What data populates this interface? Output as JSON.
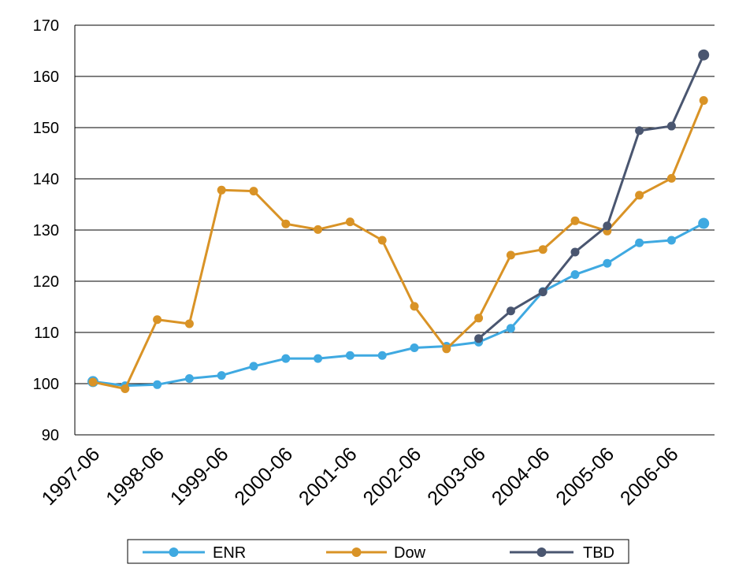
{
  "chart_data": {
    "type": "line",
    "title": "",
    "xlabel": "",
    "ylabel": "",
    "ylim": [
      90,
      170
    ],
    "y_ticks": [
      90,
      100,
      110,
      120,
      130,
      140,
      150,
      160,
      170
    ],
    "grid": true,
    "legend_position": "bottom",
    "x_tick_labels": [
      "1997-06",
      "1998-06",
      "1999-06",
      "2000-06",
      "2001-06",
      "2002-06",
      "2003-06",
      "2004-06",
      "2005-06",
      "2006-06"
    ],
    "x": [
      "1997-06",
      "1997-12",
      "1998-06",
      "1998-12",
      "1999-06",
      "1999-12",
      "2000-06",
      "2000-12",
      "2001-06",
      "2001-12",
      "2002-06",
      "2002-12",
      "2003-06",
      "2003-12",
      "2004-06",
      "2004-12",
      "2005-06",
      "2005-12",
      "2006-06",
      "2006-12"
    ],
    "series": [
      {
        "name": "ENR",
        "color": "#3fa9e1",
        "values": [
          100.4,
          99.6,
          99.8,
          101.0,
          101.6,
          103.4,
          104.9,
          104.9,
          105.5,
          105.5,
          107.0,
          107.3,
          108.1,
          110.8,
          118.0,
          121.3,
          123.5,
          127.5,
          128.0,
          131.3
        ]
      },
      {
        "name": "Dow",
        "color": "#d99326",
        "values": [
          100.3,
          99.0,
          112.5,
          111.7,
          137.8,
          137.6,
          131.2,
          130.1,
          131.6,
          128.0,
          115.1,
          106.8,
          112.8,
          125.1,
          126.2,
          131.8,
          129.8,
          136.8,
          140.1,
          155.3
        ]
      },
      {
        "name": "TBD",
        "color": "#4a5670",
        "values": [
          null,
          null,
          null,
          null,
          null,
          null,
          null,
          null,
          null,
          null,
          null,
          null,
          108.8,
          114.2,
          117.9,
          125.7,
          130.8,
          149.4,
          150.3,
          164.2
        ]
      }
    ]
  }
}
